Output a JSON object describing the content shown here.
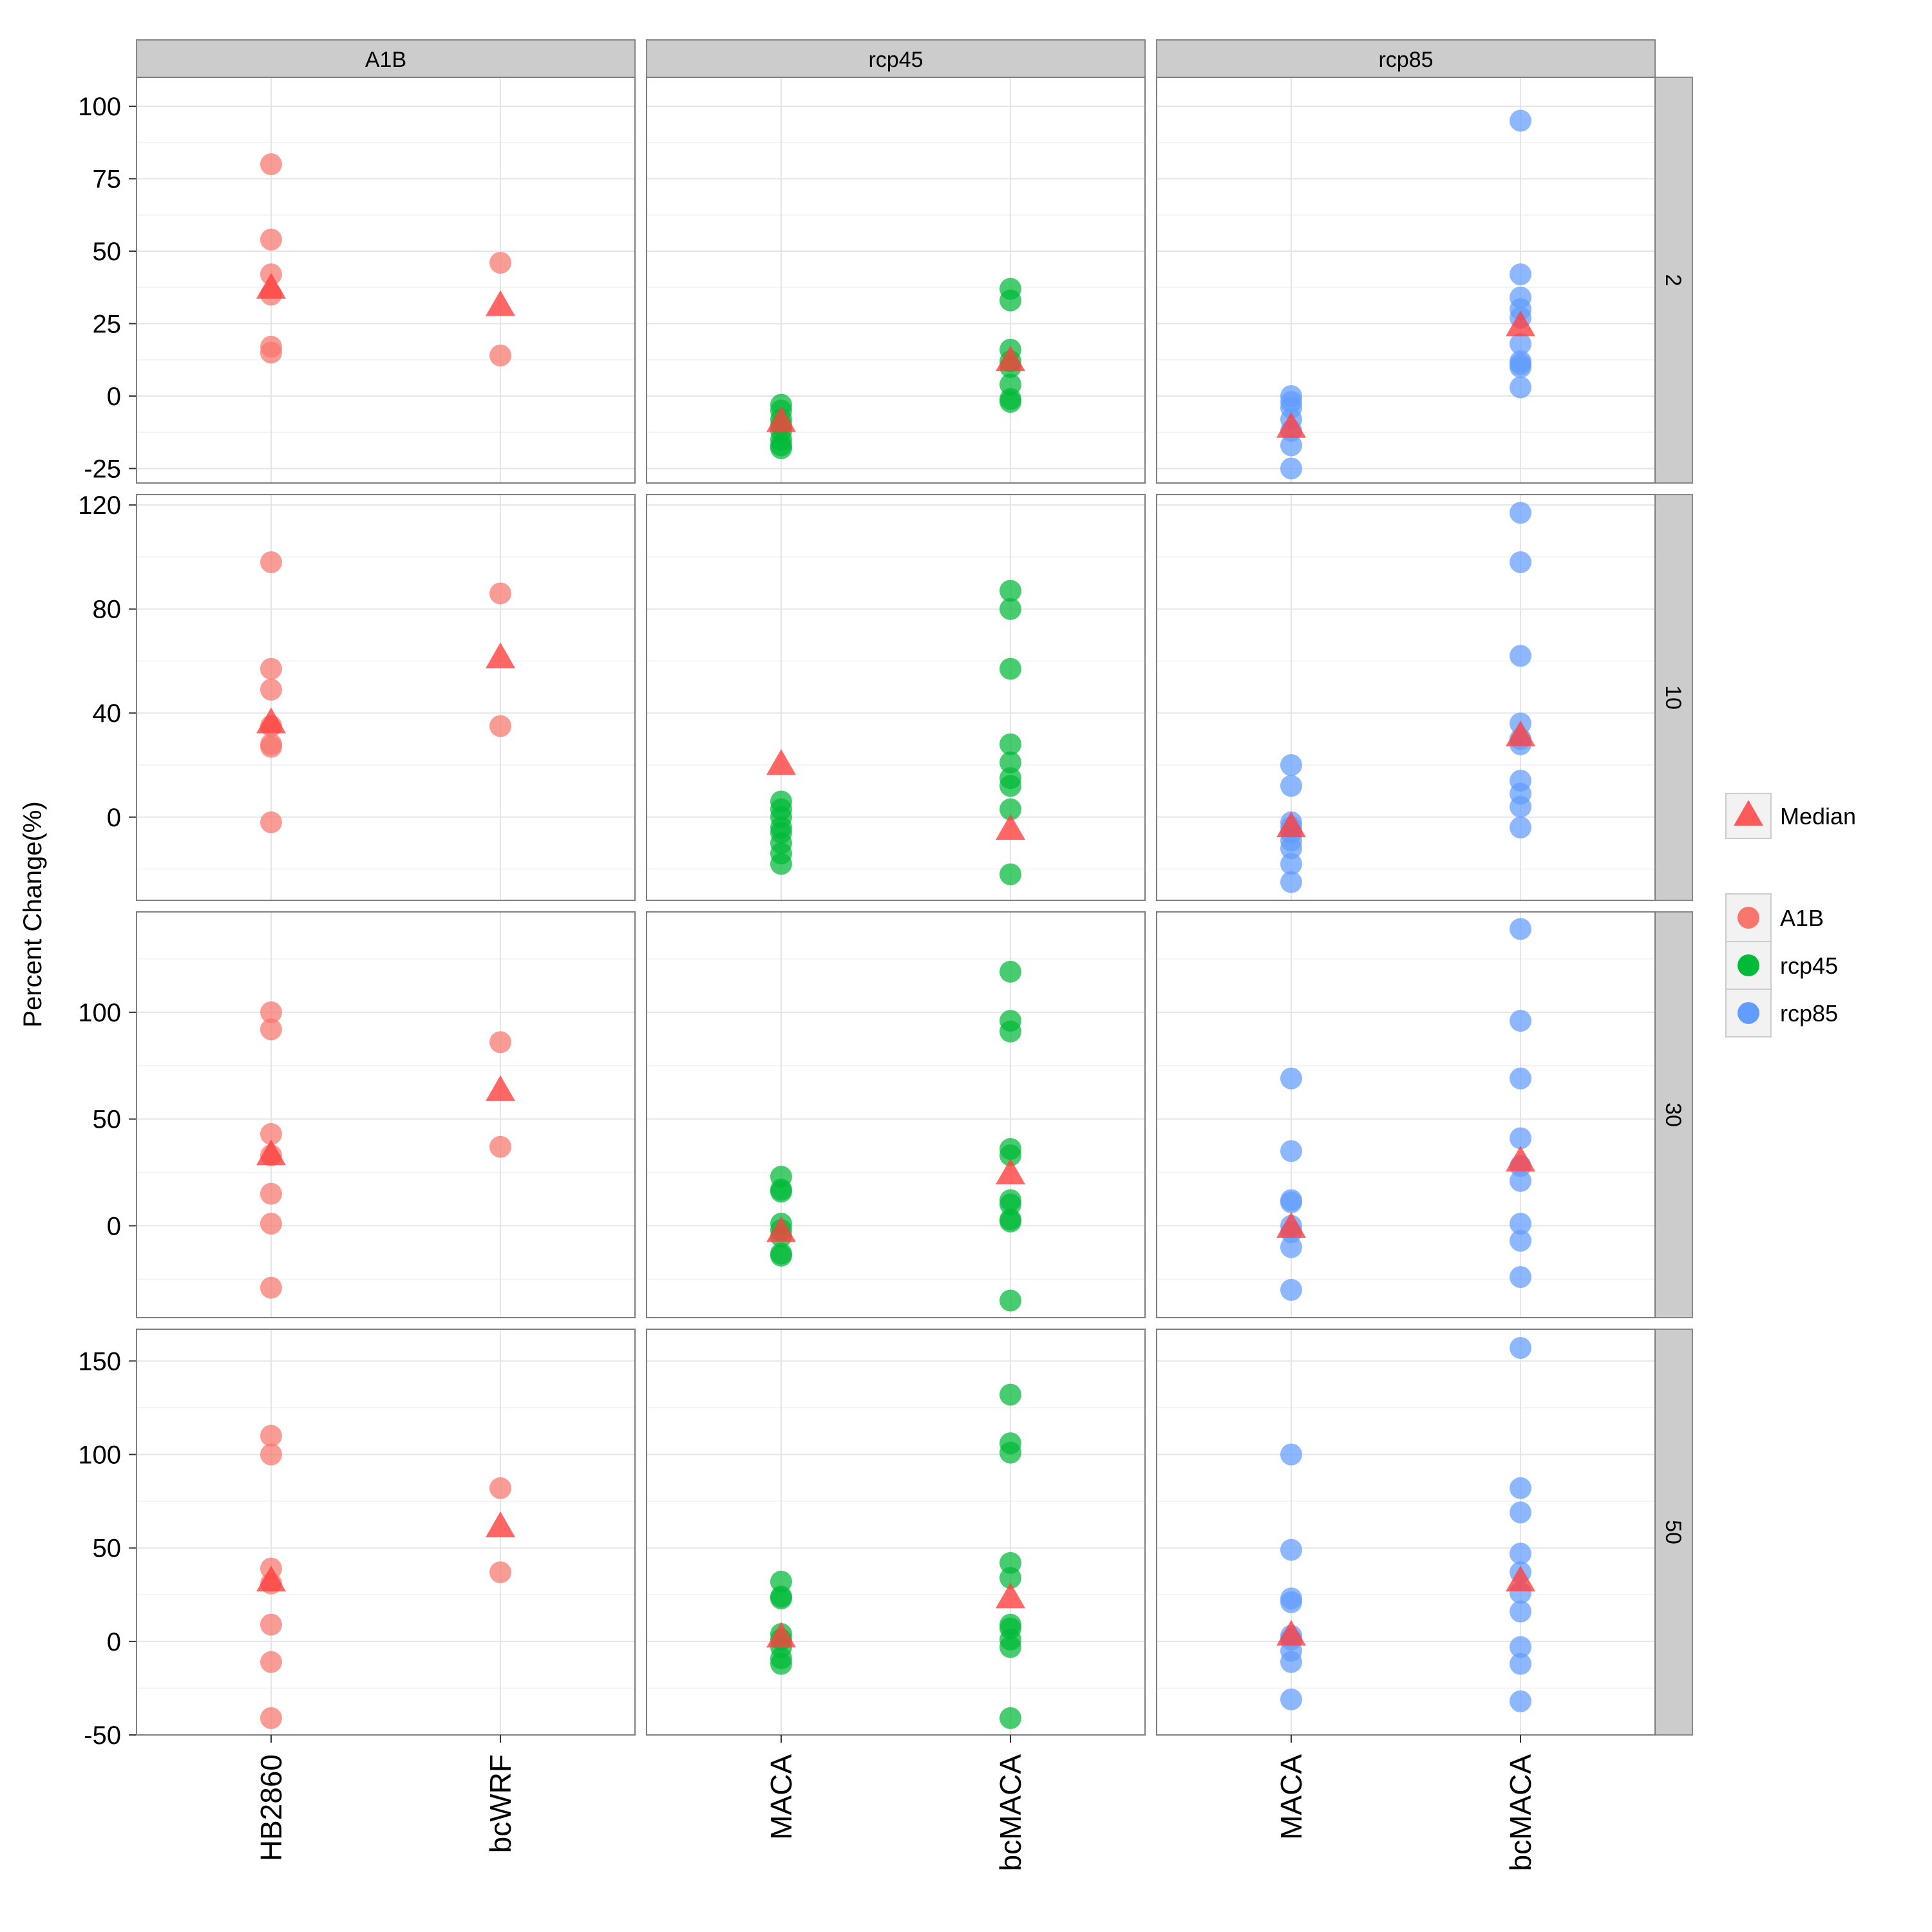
{
  "chart_data": {
    "type": "scatter",
    "ylabel": "Percent Change(%)",
    "columns": [
      {
        "label": "A1B",
        "categories": [
          "HB2860",
          "bcWRF"
        ],
        "color": "#F8766D"
      },
      {
        "label": "rcp45",
        "categories": [
          "MACA",
          "bcMACA"
        ],
        "color": "#00BA38"
      },
      {
        "label": "rcp85",
        "categories": [
          "MACA",
          "bcMACA"
        ],
        "color": "#619CFF"
      }
    ],
    "rows": [
      {
        "label": "2",
        "ylim": [
          -30,
          110
        ],
        "ticks": [
          {
            "v": 100,
            "t": "100"
          },
          {
            "v": 75,
            "t": "75"
          },
          {
            "v": 50,
            "t": "50"
          },
          {
            "v": 25,
            "t": "25"
          },
          {
            "v": 0,
            "t": "0"
          },
          {
            "v": -25,
            "t": "-25"
          }
        ]
      },
      {
        "label": "10",
        "ylim": [
          -32,
          124
        ],
        "ticks": [
          {
            "v": 120,
            "t": "120"
          },
          {
            "v": 80,
            "t": "80"
          },
          {
            "v": 40,
            "t": "40"
          },
          {
            "v": 0,
            "t": "0"
          }
        ]
      },
      {
        "label": "30",
        "ylim": [
          -43,
          147
        ],
        "ticks": [
          {
            "v": 100,
            "t": "100"
          },
          {
            "v": 50,
            "t": "50"
          },
          {
            "v": 0,
            "t": "0"
          }
        ]
      },
      {
        "label": "50",
        "ylim": [
          -50,
          167
        ],
        "ticks": [
          {
            "v": 150,
            "t": "150"
          },
          {
            "v": 100,
            "t": "100"
          },
          {
            "v": 50,
            "t": "50"
          },
          {
            "v": 0,
            "t": "0"
          },
          {
            "v": -50,
            "t": "-50"
          }
        ]
      }
    ],
    "panels": [
      [
        {
          "points": [
            [
              80,
              54,
              42,
              35,
              17,
              15
            ],
            [
              46,
              14
            ]
          ],
          "median": [
            37,
            31
          ]
        },
        {
          "points": [
            [
              -3,
              -5,
              -8,
              -10,
              -12,
              -15,
              -17,
              -18
            ],
            [
              37,
              33,
              16,
              12,
              10,
              4,
              -1,
              -2
            ]
          ],
          "median": [
            -9,
            12
          ]
        },
        {
          "points": [
            [
              0,
              -2,
              -4,
              -8,
              -12,
              -17,
              -25
            ],
            [
              95,
              42,
              34,
              30,
              27,
              18,
              12,
              11,
              10,
              3
            ]
          ],
          "median": [
            -11,
            24
          ]
        }
      ],
      [
        {
          "points": [
            [
              98,
              57,
              49,
              35,
              28,
              27,
              -2
            ],
            [
              86,
              35
            ]
          ],
          "median": [
            36,
            61
          ]
        },
        {
          "points": [
            [
              6,
              3,
              0,
              -4,
              -6,
              -10,
              -14,
              -18
            ],
            [
              87,
              80,
              57,
              28,
              21,
              15,
              12,
              3,
              -22
            ]
          ],
          "median": [
            20,
            -5
          ]
        },
        {
          "points": [
            [
              20,
              12,
              -2,
              -4,
              -6,
              -9,
              -12,
              -18,
              -25
            ],
            [
              117,
              98,
              62,
              36,
              30,
              28,
              14,
              9,
              4,
              -4
            ]
          ],
          "median": [
            -4,
            31
          ]
        }
      ],
      [
        {
          "points": [
            [
              100,
              92,
              43,
              33,
              15,
              1,
              -29
            ],
            [
              86,
              37
            ]
          ],
          "median": [
            33,
            63
          ]
        },
        {
          "points": [
            [
              23,
              17,
              16,
              1,
              -2,
              -5,
              -13,
              -14
            ],
            [
              119,
              96,
              91,
              36,
              33,
              12,
              10,
              3,
              2,
              -35
            ]
          ],
          "median": [
            -3,
            24
          ]
        },
        {
          "points": [
            [
              69,
              35,
              12,
              11,
              0,
              -3,
              -10,
              -30
            ],
            [
              139,
              96,
              69,
              41,
              28,
              21,
              1,
              -7,
              -24
            ]
          ],
          "median": [
            -1,
            30
          ]
        }
      ],
      [
        {
          "points": [
            [
              110,
              100,
              39,
              31,
              9,
              -11,
              -41
            ],
            [
              82,
              37
            ]
          ],
          "median": [
            32,
            61
          ]
        },
        {
          "points": [
            [
              32,
              24,
              23,
              4,
              1,
              -3,
              -9,
              -12
            ],
            [
              132,
              106,
              101,
              42,
              34,
              9,
              7,
              1,
              -3,
              -41
            ]
          ],
          "median": [
            2,
            23
          ]
        },
        {
          "points": [
            [
              100,
              49,
              23,
              21,
              3,
              1,
              -5,
              -11,
              -31
            ],
            [
              157,
              82,
              69,
              47,
              37,
              26,
              16,
              -3,
              -12,
              -32
            ]
          ],
          "median": [
            3,
            32
          ]
        }
      ]
    ],
    "legend": {
      "median_label": "Median",
      "median_color": "#FF4040",
      "series": [
        {
          "name": "A1B",
          "color": "#F8766D"
        },
        {
          "name": "rcp45",
          "color": "#00BA38"
        },
        {
          "name": "rcp85",
          "color": "#619CFF"
        }
      ]
    }
  }
}
